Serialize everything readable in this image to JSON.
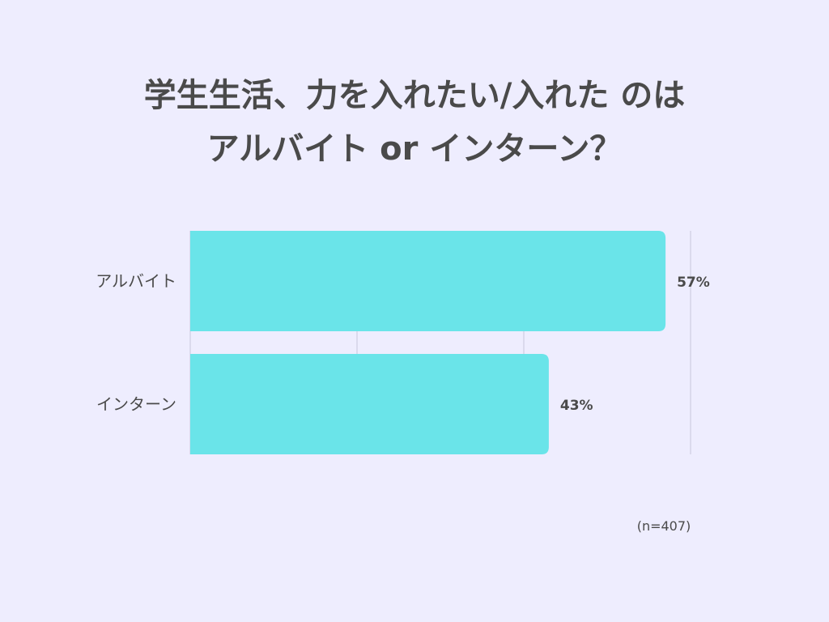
{
  "chart_data": {
    "type": "bar",
    "orientation": "horizontal",
    "title_lines": [
      "学生生活、力を入れたい/入れた のは",
      "アルバイト or インターン？"
    ],
    "categories": [
      "アルバイト",
      "インターン"
    ],
    "values": [
      57,
      43
    ],
    "value_labels": [
      "57%",
      "43%"
    ],
    "unit": "%",
    "xlim": [
      0,
      60
    ],
    "grid": true,
    "note": "(n=407)",
    "colors": {
      "bar": "#6ae4e9",
      "background": "#eeedfe",
      "grid": "#c8c6dc",
      "text": "#4a4a4a"
    }
  }
}
